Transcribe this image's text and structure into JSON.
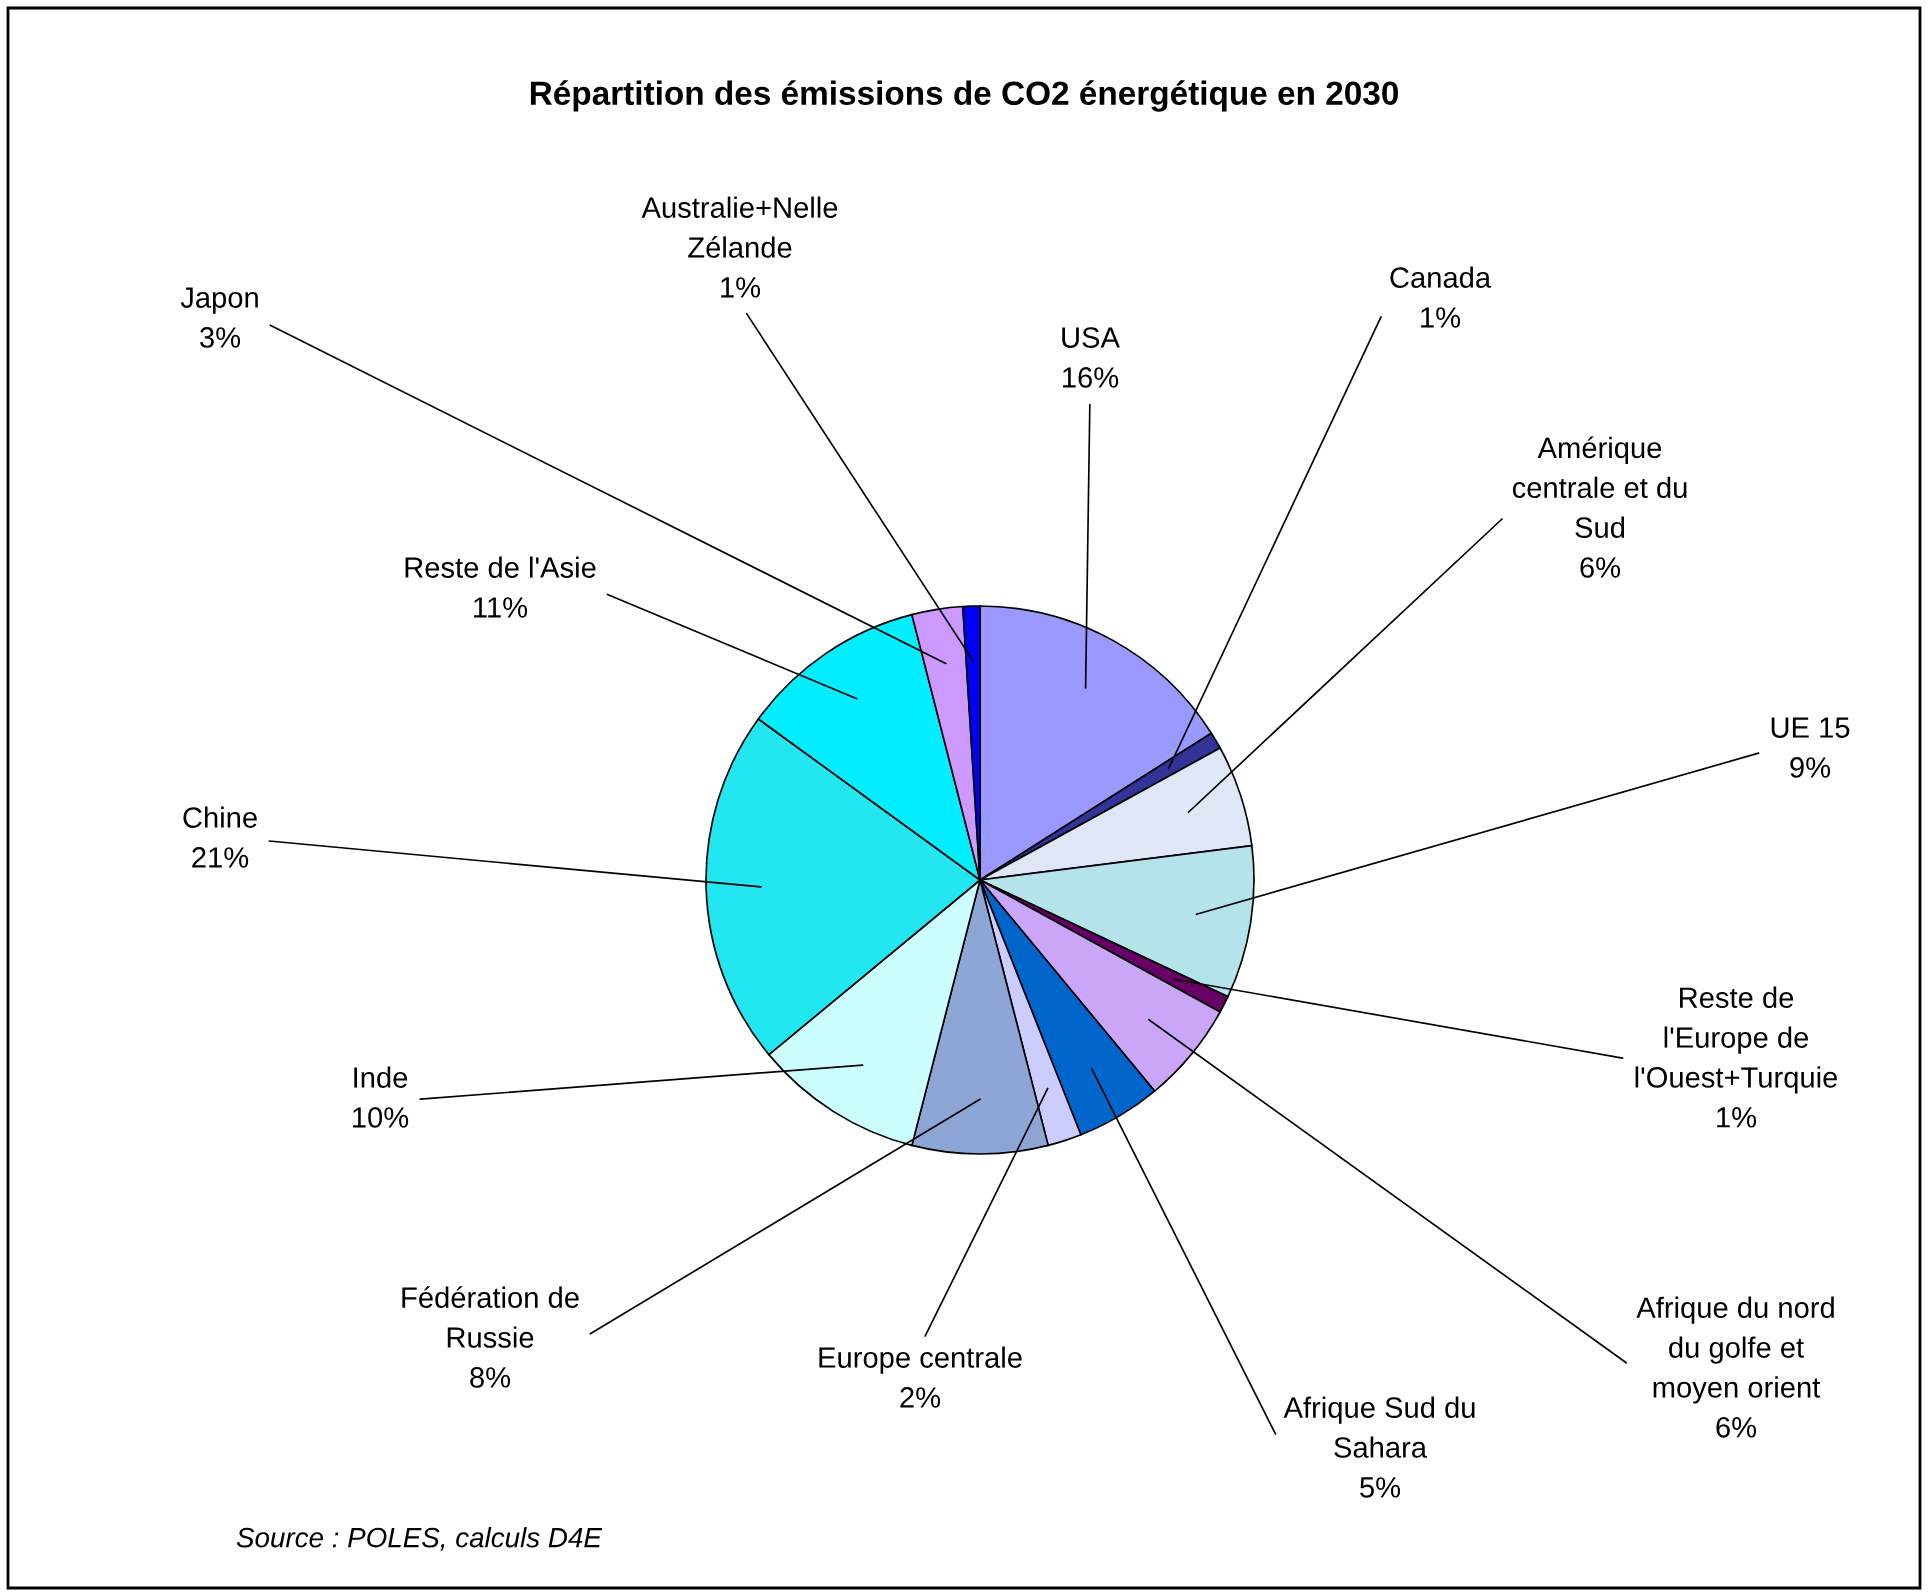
{
  "chart_data": {
    "type": "pie",
    "title": "Répartition des émissions de CO2 énergétique en 2030",
    "categories": [
      "USA",
      "Canada",
      "Amérique\ncentrale et du\nSud",
      "UE 15",
      "Reste de\nl'Europe de\nl'Ouest+Turquie",
      "Afrique du nord\ndu golfe et\nmoyen orient",
      "Afrique Sud du\nSahara",
      "Europe centrale",
      "Fédération de\nRussie",
      "Inde",
      "Chine",
      "Reste de l'Asie",
      "Japon",
      "Australie+Nelle\nZélande"
    ],
    "values": [
      16,
      1,
      6,
      9,
      1,
      6,
      5,
      2,
      8,
      10,
      21,
      11,
      3,
      1
    ],
    "colors": [
      "#9999ff",
      "#333399",
      "#dfe6f6",
      "#b4e4ea",
      "#660066",
      "#c9a6f7",
      "#0066cc",
      "#ccccff",
      "#8ea6d6",
      "#ccffff",
      "#22e6f0",
      "#00eeff",
      "#cc99ff",
      "#0000ff"
    ],
    "value_labels": [
      "16%",
      "1%",
      "6%",
      "9%",
      "1%",
      "6%",
      "5%",
      "2%",
      "8%",
      "10%",
      "21%",
      "11%",
      "3%",
      "1%"
    ],
    "annotations": [
      "Source : POLES, calculs D4E"
    ]
  }
}
